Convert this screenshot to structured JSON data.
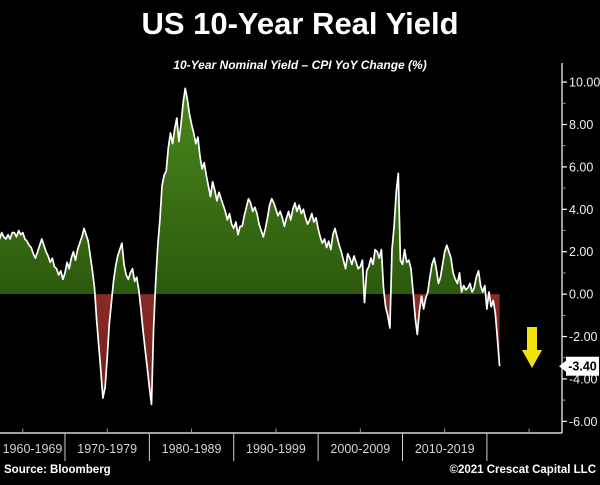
{
  "title": "US 10-Year Real Yield",
  "subtitle": "10-Year Nominal Yield – CPI YoY Change (%)",
  "footer": {
    "source": "Source: Bloomberg",
    "copyright": "©2021 Crescat Capital LLC"
  },
  "annotation": {
    "last_value_label": "-3.40",
    "arrow_icon": "down-arrow",
    "arrow_color": "#f2e30e"
  },
  "colors": {
    "background": "#000000",
    "line": "#ffffff",
    "positive_fill_top": "#4f8c1e",
    "positive_fill_bottom": "#2c5a0e",
    "negative_fill_top": "#8a2a26",
    "negative_fill_bottom": "#6e1f1c",
    "axis": "#ffffff",
    "minor_tick": "#999999",
    "x_label_color": "#d4d4d4",
    "y_label_color": "#f0f0f0",
    "callout_bg": "#ffffff",
    "callout_text": "#000000"
  },
  "chart_data": {
    "type": "area",
    "title": "US 10-Year Real Yield",
    "subtitle": "10-Year Nominal Yield – CPI YoY Change (%)",
    "ylabel": "",
    "xlabel": "",
    "legend": "none",
    "grid": false,
    "ylim": [
      -6.55,
      10.9
    ],
    "xlim": [
      1962.3,
      2028.9
    ],
    "y_axis": {
      "side": "right",
      "tick_values": [
        10,
        8,
        6,
        4,
        2,
        0,
        -2,
        -4,
        -6
      ],
      "tick_labels": [
        "10.00",
        "8.00",
        "6.00",
        "4.00",
        "2.00",
        "0.00",
        "-2.00",
        "-4.00",
        "-6.00"
      ],
      "minor_tick_values": [
        9,
        7,
        5,
        3,
        1,
        -1,
        -3,
        -5
      ]
    },
    "x_axis": {
      "decade_labels": [
        "1960-1969",
        "1970-1979",
        "1980-1989",
        "1990-1999",
        "2000-2009",
        "2010-2019"
      ],
      "boundary_years": [
        1970,
        1980,
        1990,
        2000,
        2010,
        2020
      ],
      "minor_tick_years": [
        1965,
        1975,
        1985,
        1995,
        2005,
        2015,
        2025
      ]
    },
    "last_point": {
      "year": 2021.75,
      "value": -3.4,
      "label": "-3.40"
    },
    "series": {
      "name": "US 10-Year Real Yield (10Y nominal yield minus CPI YoY, %)",
      "start_year": 1962.0,
      "points_per_year": 4,
      "values": [
        2.8,
        2.6,
        2.9,
        2.7,
        2.6,
        2.8,
        2.6,
        2.9,
        2.9,
        2.7,
        3.0,
        2.8,
        2.9,
        2.6,
        2.5,
        2.3,
        2.2,
        1.9,
        1.7,
        2.0,
        2.3,
        2.6,
        2.3,
        2.0,
        1.8,
        1.5,
        1.7,
        1.3,
        1.2,
        0.9,
        1.1,
        0.7,
        1.0,
        1.5,
        1.2,
        1.7,
        2.0,
        1.6,
        2.1,
        2.4,
        2.7,
        3.1,
        2.8,
        2.5,
        1.8,
        1.1,
        0.3,
        -1.2,
        -2.4,
        -3.6,
        -4.9,
        -4.4,
        -3.0,
        -1.4,
        -0.4,
        0.6,
        1.3,
        1.8,
        2.1,
        2.4,
        1.4,
        0.9,
        0.7,
        1.0,
        1.2,
        0.6,
        0.8,
        0.2,
        -0.7,
        -1.7,
        -2.6,
        -3.5,
        -4.4,
        -5.2,
        -1.6,
        0.6,
        2.3,
        3.5,
        5.1,
        5.6,
        5.8,
        6.9,
        7.6,
        7.1,
        7.8,
        8.3,
        7.2,
        8.0,
        9.0,
        9.7,
        9.2,
        8.5,
        8.0,
        7.6,
        7.1,
        7.4,
        6.5,
        5.9,
        6.2,
        5.6,
        5.1,
        4.6,
        5.3,
        4.9,
        4.4,
        4.8,
        4.5,
        4.2,
        3.9,
        3.5,
        3.8,
        3.3,
        3.1,
        3.4,
        2.8,
        3.2,
        3.2,
        3.7,
        4.1,
        4.5,
        4.3,
        3.9,
        4.1,
        3.8,
        3.3,
        3.0,
        2.7,
        3.1,
        3.6,
        4.2,
        4.5,
        4.3,
        4.0,
        3.7,
        3.9,
        3.6,
        3.2,
        3.6,
        3.9,
        3.5,
        4.0,
        4.3,
        3.9,
        4.2,
        3.8,
        4.0,
        3.6,
        3.3,
        3.5,
        3.8,
        3.4,
        3.6,
        3.1,
        2.7,
        2.4,
        2.6,
        2.2,
        2.5,
        2.1,
        2.8,
        3.1,
        2.7,
        2.3,
        2.0,
        1.6,
        1.2,
        1.9,
        1.7,
        1.4,
        1.8,
        1.5,
        1.2,
        1.3,
        1.6,
        -0.4,
        1.1,
        1.3,
        1.7,
        1.4,
        2.1,
        2.0,
        1.7,
        2.1,
        0.3,
        -0.6,
        -1.0,
        -1.6,
        2.1,
        3.2,
        4.8,
        5.7,
        1.6,
        1.4,
        2.1,
        1.5,
        1.6,
        1.2,
        0.1,
        -1.1,
        -1.9,
        -0.8,
        -0.1,
        -0.7,
        -0.2,
        0.1,
        0.8,
        1.4,
        1.7,
        1.2,
        0.5,
        0.8,
        1.4,
        2.0,
        2.3,
        2.0,
        1.7,
        1.0,
        0.7,
        0.5,
        1.0,
        0.1,
        0.4,
        0.2,
        0.3,
        0.5,
        0.1,
        0.3,
        0.8,
        1.1,
        0.4,
        0.1,
        0.4,
        -0.7,
        0.1,
        -0.6,
        -0.3,
        -0.9,
        -2.1,
        -3.4
      ]
    }
  }
}
